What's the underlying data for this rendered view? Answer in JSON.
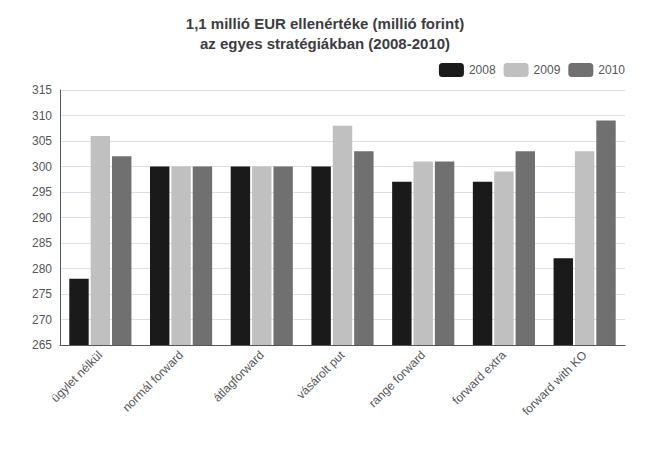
{
  "chart_data": {
    "type": "bar",
    "title": "1,1 millió EUR ellenértéke (millió forint)\naz egyes stratégiákban (2008-2010)",
    "categories": [
      "ügylet nélkül",
      "normál forward",
      "átlagforward",
      "vásárolt put",
      "range forward",
      "forward extra",
      "forward with KO"
    ],
    "series": [
      {
        "name": "2008",
        "color": "#1a1a1a",
        "values": [
          278,
          300,
          300,
          300,
          297,
          297,
          282
        ]
      },
      {
        "name": "2009",
        "color": "#c0c0c0",
        "values": [
          306,
          300,
          300,
          308,
          301,
          299,
          303
        ]
      },
      {
        "name": "2010",
        "color": "#707070",
        "values": [
          302,
          300,
          300,
          303,
          301,
          303,
          309
        ]
      }
    ],
    "ylim": [
      265,
      315
    ],
    "yticks": [
      265,
      270,
      275,
      280,
      285,
      290,
      295,
      300,
      305,
      310,
      315
    ],
    "grid": true,
    "legend": "upper right"
  }
}
